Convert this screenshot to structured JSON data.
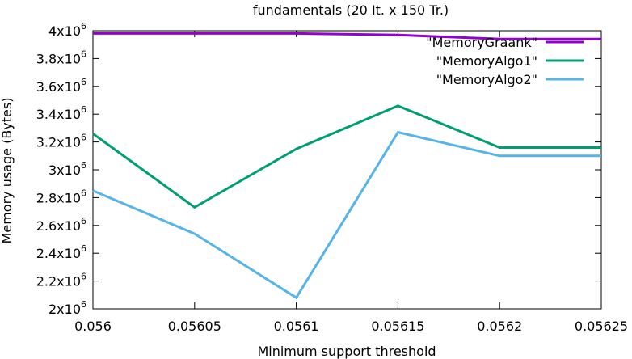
{
  "chart_data": {
    "type": "line",
    "title": "fundamentals (20 It. x  150 Tr.)",
    "xlabel": "Minimum support threshold",
    "ylabel": "Memory usage (Bytes)",
    "xlim": [
      0.056,
      0.05625
    ],
    "ylim": [
      2000000,
      4000000
    ],
    "x_ticks": [
      {
        "value": 0.056,
        "label": "0.056"
      },
      {
        "value": 0.05605,
        "label": "0.05605"
      },
      {
        "value": 0.0561,
        "label": "0.0561"
      },
      {
        "value": 0.05615,
        "label": "0.05615"
      },
      {
        "value": 0.0562,
        "label": "0.0562"
      },
      {
        "value": 0.05625,
        "label": "0.05625"
      }
    ],
    "y_ticks": [
      {
        "value": 2000000,
        "mantissa": "2x10",
        "exp": "6"
      },
      {
        "value": 2200000,
        "mantissa": "2.2x10",
        "exp": "6"
      },
      {
        "value": 2400000,
        "mantissa": "2.4x10",
        "exp": "6"
      },
      {
        "value": 2600000,
        "mantissa": "2.6x10",
        "exp": "6"
      },
      {
        "value": 2800000,
        "mantissa": "2.8x10",
        "exp": "6"
      },
      {
        "value": 3000000,
        "mantissa": "3x10",
        "exp": "6"
      },
      {
        "value": 3200000,
        "mantissa": "3.2x10",
        "exp": "6"
      },
      {
        "value": 3400000,
        "mantissa": "3.4x10",
        "exp": "6"
      },
      {
        "value": 3600000,
        "mantissa": "3.6x10",
        "exp": "6"
      },
      {
        "value": 3800000,
        "mantissa": "3.8x10",
        "exp": "6"
      },
      {
        "value": 4000000,
        "mantissa": "4x10",
        "exp": "6"
      }
    ],
    "legend_position": "top-right",
    "grid": false,
    "series": [
      {
        "name": "\"MemoryGraank\"",
        "color": "#9400d3",
        "x": [
          0.056,
          0.05605,
          0.0561,
          0.05615,
          0.0562,
          0.05625
        ],
        "y": [
          3980000,
          3980000,
          3980000,
          3970000,
          3940000,
          3940000
        ]
      },
      {
        "name": "\"MemoryAlgo1\"",
        "color": "#009e73",
        "x": [
          0.056,
          0.05605,
          0.0561,
          0.05615,
          0.0562,
          0.05625
        ],
        "y": [
          3260000,
          2730000,
          3150000,
          3460000,
          3160000,
          3160000
        ]
      },
      {
        "name": "\"MemoryAlgo2\"",
        "color": "#56b4e9",
        "x": [
          0.056,
          0.05605,
          0.0561,
          0.05615,
          0.0562,
          0.05625
        ],
        "y": [
          2850000,
          2540000,
          2080000,
          3270000,
          3100000,
          3100000
        ]
      }
    ]
  }
}
